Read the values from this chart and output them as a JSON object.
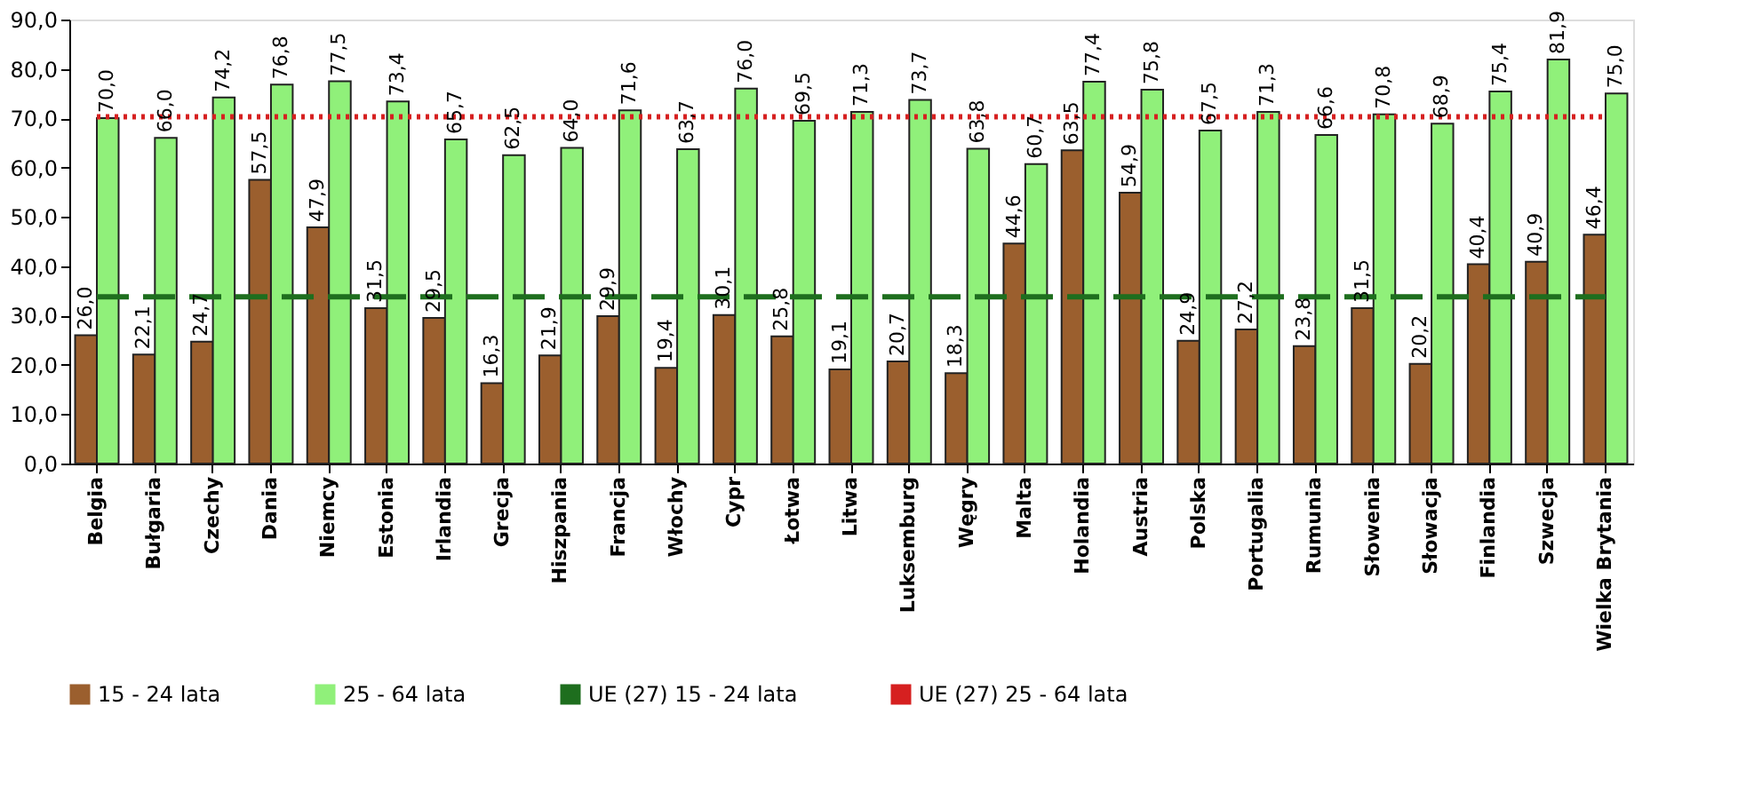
{
  "chart_data": {
    "type": "bar",
    "categories": [
      "Belgia",
      "Bułgaria",
      "Czechy",
      "Dania",
      "Niemcy",
      "Estonia",
      "Irlandia",
      "Grecja",
      "Hiszpania",
      "Francja",
      "Włochy",
      "Cypr",
      "Łotwa",
      "Litwa",
      "Luksemburg",
      "Węgry",
      "Malta",
      "Holandia",
      "Austria",
      "Polska",
      "Portugalia",
      "Rumunia",
      "Słowenia",
      "Słowacja",
      "Finlandia",
      "Szwecja",
      "Wielka Brytania"
    ],
    "series": [
      {
        "name": "15 - 24 lata",
        "color": "#9b5f2e",
        "values": [
          26.0,
          22.1,
          24.7,
          57.5,
          47.9,
          31.5,
          29.5,
          16.3,
          21.9,
          29.9,
          19.4,
          30.1,
          25.8,
          19.1,
          20.7,
          18.3,
          44.6,
          63.5,
          54.9,
          24.9,
          27.2,
          23.8,
          31.5,
          20.2,
          40.4,
          40.9,
          46.4
        ],
        "value_labels": [
          "26,0",
          "22,1",
          "24,7",
          "57,5",
          "47,9",
          "31,5",
          "29,5",
          "16,3",
          "21,9",
          "29,9",
          "19,4",
          "30,1",
          "25,8",
          "19,1",
          "20,7",
          "18,3",
          "44,6",
          "63,5",
          "54,9",
          "24,9",
          "27,2",
          "23,8",
          "31,5",
          "20,2",
          "40,4",
          "40,9",
          "46,4"
        ]
      },
      {
        "name": "25 - 64 lata",
        "color": "#90f07a",
        "values": [
          70.0,
          66.0,
          74.2,
          76.8,
          77.5,
          73.4,
          65.7,
          62.5,
          64.0,
          71.6,
          63.7,
          76.0,
          69.5,
          71.3,
          73.7,
          63.8,
          60.7,
          77.4,
          75.8,
          67.5,
          71.3,
          66.6,
          70.8,
          68.9,
          75.4,
          81.9,
          75.0
        ],
        "value_labels": [
          "70,0",
          "66,0",
          "74,2",
          "76,8",
          "77,5",
          "73,4",
          "65,7",
          "62,5",
          "64,0",
          "71,6",
          "63,7",
          "76,0",
          "69,5",
          "71,3",
          "73,7",
          "63,8",
          "60,7",
          "77,4",
          "75,8",
          "67,5",
          "71,3",
          "66,6",
          "70,8",
          "68,9",
          "75,4",
          "81,9",
          "75,0"
        ]
      },
      {
        "name": "UE (27) 15 - 24 lata",
        "type": "line",
        "line_style": "dashed",
        "color": "#1e6e1e",
        "values": [
          33.8,
          33.8,
          33.8,
          33.8,
          33.8,
          33.8,
          33.8,
          33.8,
          33.8,
          33.8,
          33.8,
          33.8,
          33.8,
          33.8,
          33.8,
          33.8,
          33.8,
          33.8,
          33.8,
          33.8,
          33.8,
          33.8,
          33.8,
          33.8,
          33.8,
          33.8,
          33.8
        ]
      },
      {
        "name": "UE (27) 25 - 64 lata",
        "type": "line",
        "line_style": "dotted",
        "color": "#d62020",
        "values": [
          70.3,
          70.3,
          70.3,
          70.3,
          70.3,
          70.3,
          70.3,
          70.3,
          70.3,
          70.3,
          70.3,
          70.3,
          70.3,
          70.3,
          70.3,
          70.3,
          70.3,
          70.3,
          70.3,
          70.3,
          70.3,
          70.3,
          70.3,
          70.3,
          70.3,
          70.3,
          70.3
        ]
      }
    ],
    "ylim": [
      0,
      90
    ],
    "yticks": [
      {
        "value": 0,
        "label": "0,0"
      },
      {
        "value": 10,
        "label": "10,0"
      },
      {
        "value": 20,
        "label": "20,0"
      },
      {
        "value": 30,
        "label": "30,0"
      },
      {
        "value": 40,
        "label": "40,0"
      },
      {
        "value": 50,
        "label": "50,0"
      },
      {
        "value": 60,
        "label": "60,0"
      },
      {
        "value": 70,
        "label": "70,0"
      },
      {
        "value": 80,
        "label": "80,0"
      },
      {
        "value": 90,
        "label": "90,0"
      }
    ],
    "grid": false,
    "legend": "bottom",
    "marker": "none"
  }
}
